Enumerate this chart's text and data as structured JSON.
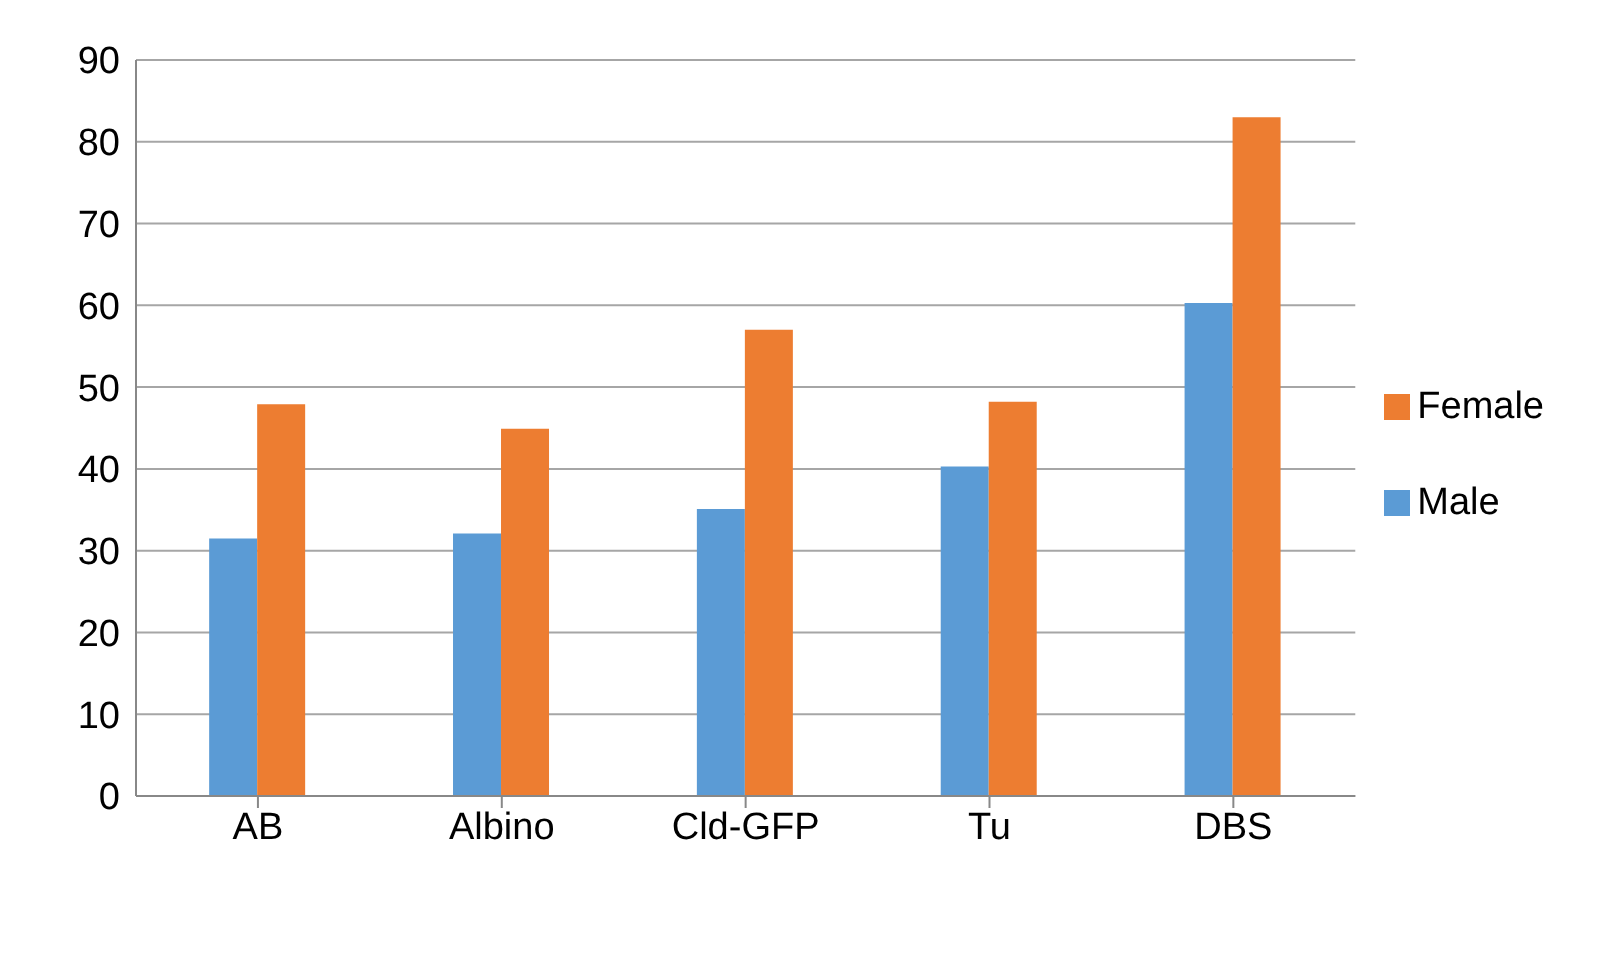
{
  "chart_data": {
    "type": "bar",
    "categories": [
      "AB",
      "Albino",
      "Cld-GFP",
      "Tu",
      "DBS"
    ],
    "series": [
      {
        "name": "Male",
        "color": "#5b9bd5",
        "values": [
          31.5,
          32.1,
          35.1,
          40.3,
          60.3
        ]
      },
      {
        "name": "Female",
        "color": "#ed7d31",
        "values": [
          47.9,
          44.9,
          57.0,
          48.2,
          83.0
        ]
      }
    ],
    "ylim": [
      0,
      90
    ],
    "yticks": [
      0,
      10,
      20,
      30,
      40,
      50,
      60,
      70,
      80,
      90
    ],
    "grid": "y",
    "legend": "right"
  }
}
